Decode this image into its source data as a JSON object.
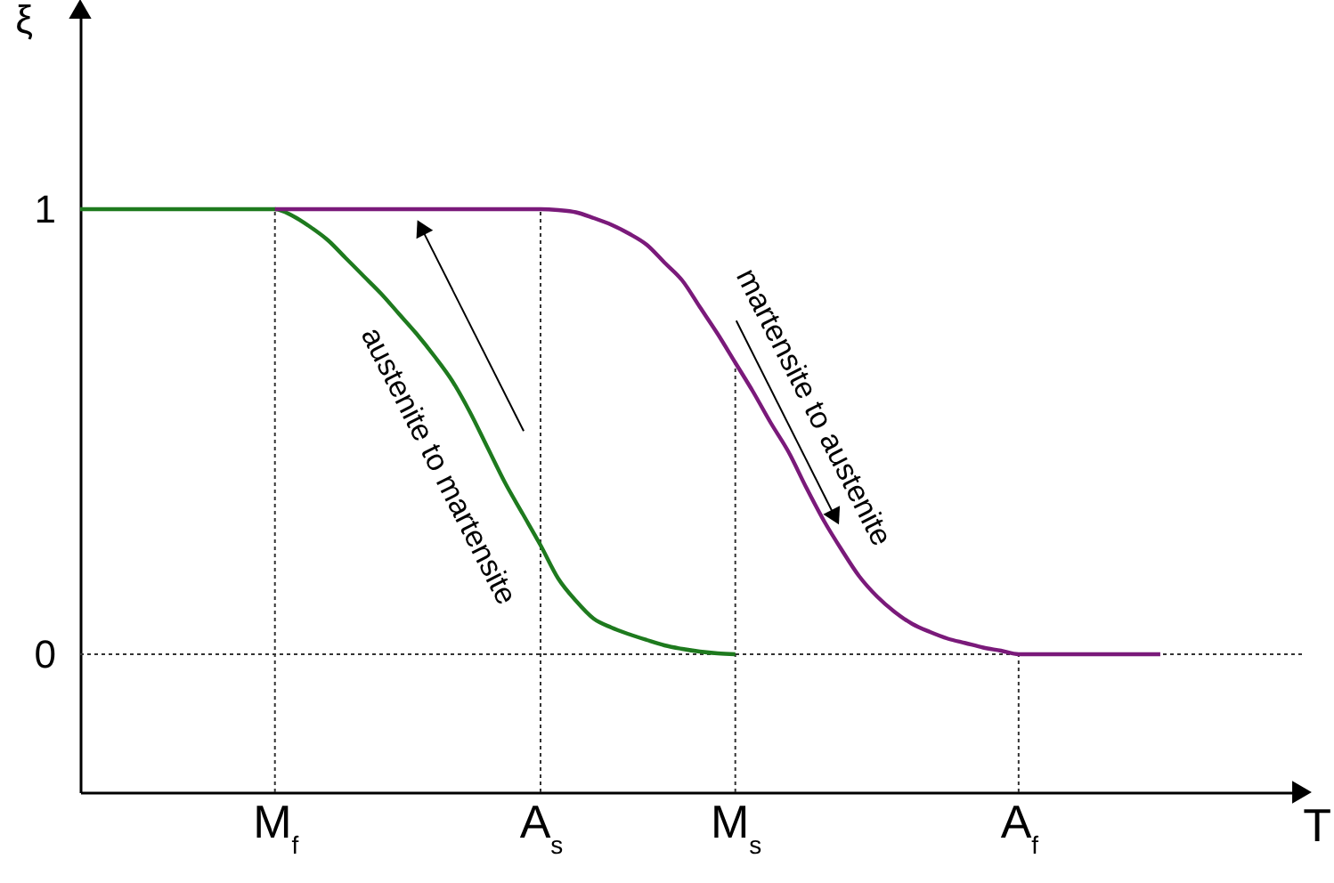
{
  "chart_data": {
    "type": "line",
    "xlabel": "T",
    "ylabel": "ξ",
    "ylim": [
      -0.31,
      1.45
    ],
    "categories": [
      null,
      null,
      null,
      null,
      null,
      null,
      null,
      null,
      null,
      null,
      null,
      "M$_{f}$",
      null,
      null,
      null,
      null,
      null,
      null,
      null,
      null,
      null,
      null,
      null,
      null,
      null,
      null,
      "A$_{s}$",
      null,
      null,
      null,
      null,
      null,
      null,
      null,
      null,
      null,
      null,
      "M$_{s}$",
      null,
      null,
      null,
      null,
      null,
      null,
      null,
      null,
      null,
      null,
      null,
      null,
      null,
      null,
      null,
      "A$_{f}$",
      null,
      null,
      null,
      null,
      null,
      null,
      null,
      null,
      null,
      null,
      null,
      null,
      null,
      null,
      null,
      null
    ],
    "yticks": [
      {
        "value": 0,
        "label": "0"
      },
      {
        "value": 1,
        "label": "1"
      }
    ],
    "grid": false,
    "marker": "none",
    "line_style": "solid",
    "series": [
      {
        "color": "#1e7a1e",
        "values": [
          1,
          1,
          1,
          1,
          1,
          1,
          1,
          1,
          1,
          1,
          1,
          1,
          0.985,
          0.96,
          0.93,
          0.89,
          0.85,
          0.81,
          0.765,
          0.72,
          0.67,
          0.615,
          0.545,
          0.465,
          0.385,
          0.315,
          0.245,
          0.17,
          0.12,
          0.08,
          0.06,
          0.045,
          0.032,
          0.02,
          0.012,
          0.006,
          0.002,
          0,
          null,
          null,
          null,
          null,
          null,
          null,
          null,
          null,
          null,
          null,
          null,
          null,
          null,
          null,
          null,
          null,
          null,
          null,
          null,
          null,
          null,
          null,
          null,
          null,
          null,
          null,
          null,
          null,
          null,
          null,
          null,
          null
        ]
      },
      {
        "color": "#7a1a7a",
        "values": [
          null,
          null,
          null,
          null,
          null,
          null,
          null,
          null,
          null,
          null,
          null,
          1,
          1,
          1,
          1,
          1,
          1,
          1,
          1,
          1,
          1,
          1,
          1,
          1,
          1,
          1,
          1,
          0.998,
          0.993,
          0.98,
          0.965,
          0.945,
          0.92,
          0.88,
          0.84,
          0.78,
          0.72,
          0.655,
          0.59,
          0.52,
          0.455,
          0.375,
          0.3,
          0.235,
          0.175,
          0.13,
          0.095,
          0.068,
          0.05,
          0.035,
          0.025,
          0.015,
          0.008,
          0,
          0,
          0,
          0,
          0,
          0,
          0,
          0,
          0,
          null,
          null,
          null,
          null,
          null,
          null,
          null,
          null
        ]
      }
    ],
    "ref_lines": [
      {
        "axis": "x",
        "value": "M$_{f}$",
        "line_style": "dotted"
      },
      {
        "axis": "x",
        "value": "A$_{s}$",
        "line_style": "dotted"
      },
      {
        "axis": "x",
        "value": "M$_{s}$",
        "line_style": "dotted"
      },
      {
        "axis": "x",
        "value": "A$_{f}$",
        "line_style": "dotted"
      },
      {
        "axis": "y",
        "value": 0,
        "line_style": "dotted"
      }
    ],
    "annotations": [
      "austenite to martensite",
      "martensite to austenite"
    ]
  }
}
